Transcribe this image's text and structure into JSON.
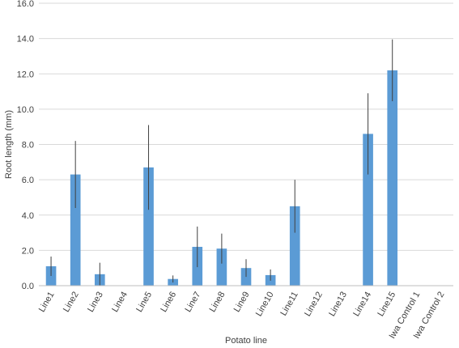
{
  "chart_data": {
    "type": "bar",
    "categories": [
      "Line1",
      "Line2",
      "Line3",
      "Line4",
      "Line5",
      "Line6",
      "Line7",
      "Line8",
      "Line9",
      "Line10",
      "Line11",
      "Line12",
      "Line13",
      "Line14",
      "Line15",
      "Iwa Control 1",
      "Iwa Control 2"
    ],
    "values": [
      1.1,
      6.3,
      0.65,
      0,
      6.7,
      0.38,
      2.2,
      2.1,
      1.0,
      0.6,
      4.5,
      0,
      0,
      8.6,
      12.2,
      0,
      0
    ],
    "error": [
      0.55,
      1.9,
      0.65,
      0,
      2.4,
      0.2,
      1.15,
      0.85,
      0.5,
      0.32,
      1.5,
      0,
      0,
      2.3,
      1.75,
      0,
      0
    ],
    "title": "",
    "xlabel": "Potato line",
    "ylabel": "Root length (mm)",
    "ylim": [
      0,
      16
    ],
    "yticks": [
      "0.0",
      "2.0",
      "4.0",
      "6.0",
      "8.0",
      "10.0",
      "12.0",
      "14.0",
      "16.0"
    ],
    "grid": true,
    "bar_color": "#5b9bd5",
    "error_color": "#404040",
    "grid_color": "#d9d9d9",
    "axis_color": "#bfbfbf"
  }
}
